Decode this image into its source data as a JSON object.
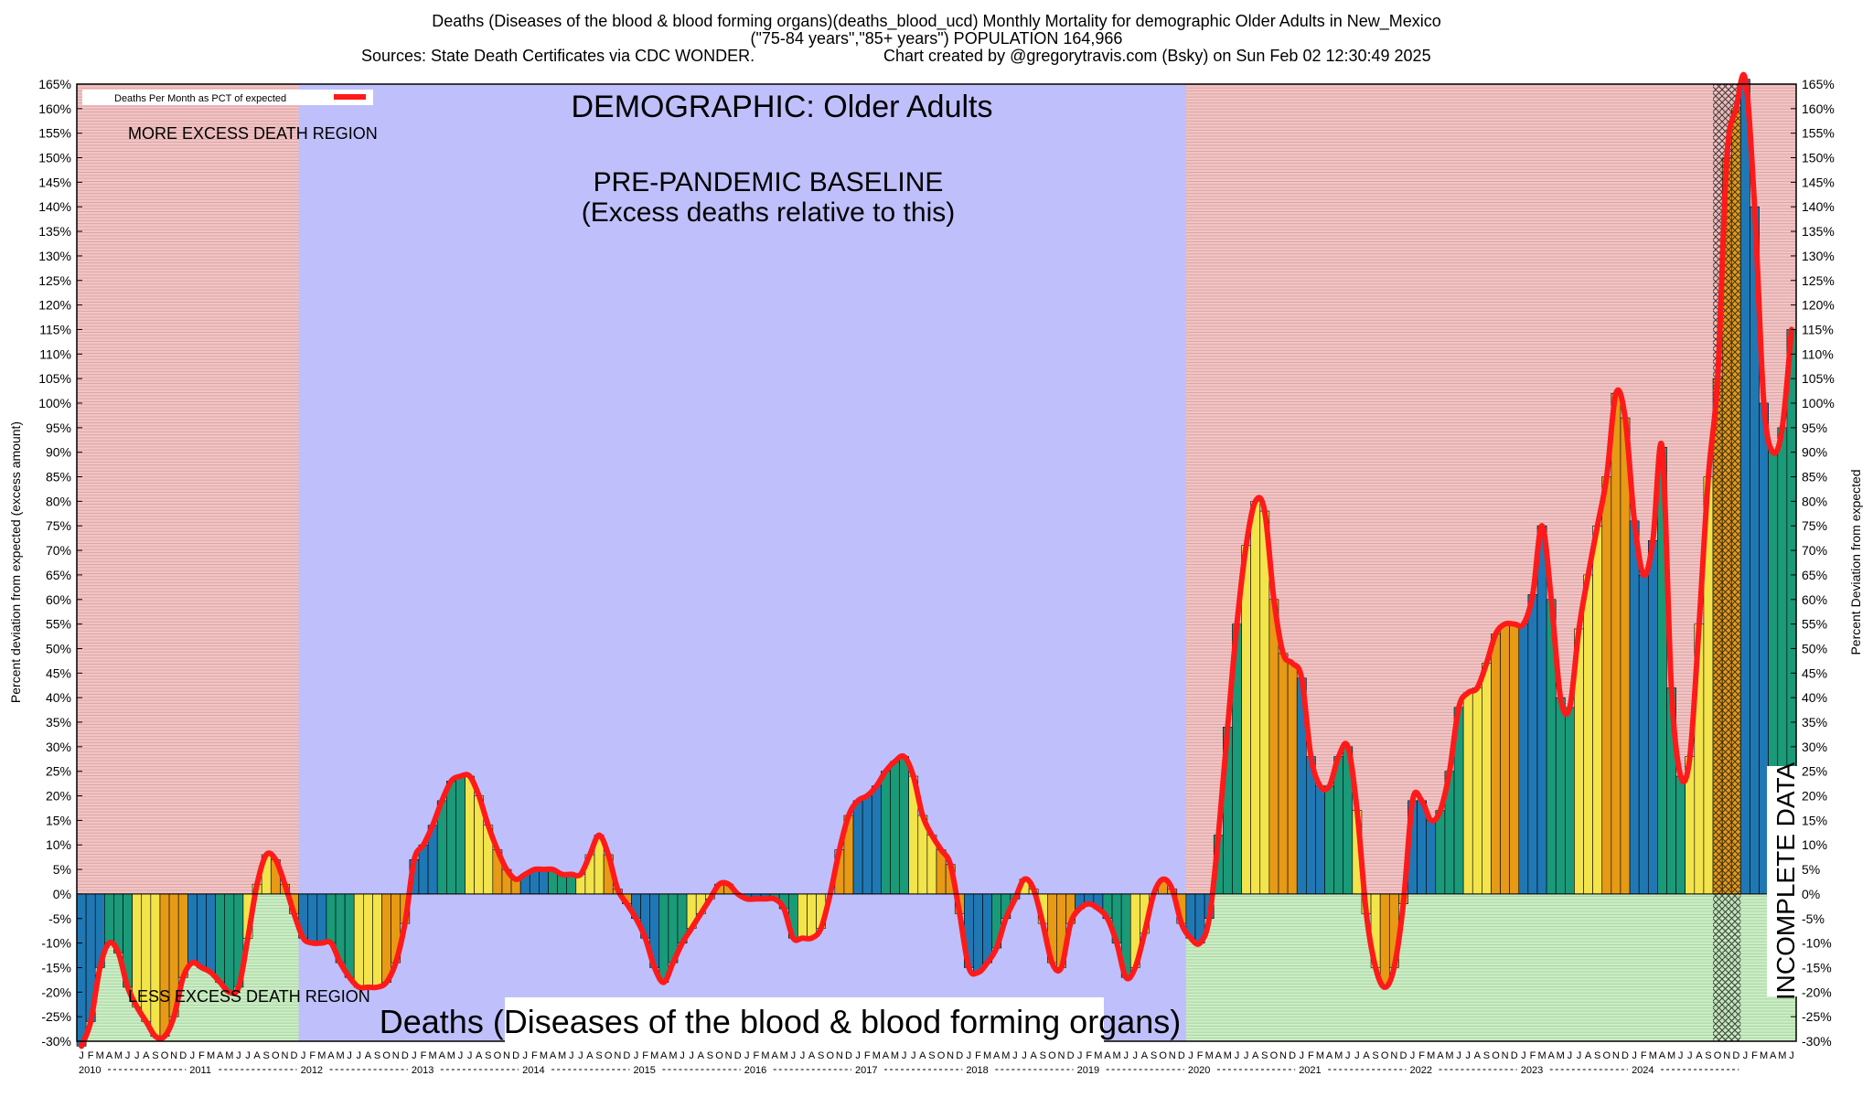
{
  "header": {
    "line1": "Deaths (Diseases of the blood & blood forming organs)(deaths_blood_ucd) Monthly Mortality for demographic Older Adults in New_Mexico",
    "line2": "(\"75-84 years\",\"85+ years\") POPULATION 164,966",
    "line3_left": "Sources: State Death Certificates via CDC WONDER.",
    "line3_right": "Chart created by @gregorytravis.com (Bsky) on Sun Feb 02 12:30:49 2025"
  },
  "colors": {
    "excess_region": "#f4c4c4",
    "less_region": "#cbeec4",
    "baseline_region": "#bfbffb",
    "curve": "#ff1a1a",
    "bar_blue": "#1f78b4",
    "bar_green": "#1a9a78",
    "bar_yellow": "#f3e44b",
    "bar_orange": "#e69a16"
  },
  "chart_data": {
    "type": "bar",
    "title": "DEMOGRAPHIC: Older Adults",
    "subtitle": "Deaths (Diseases of the blood & blood forming organs)",
    "ylabel_left": "Percent deviation from expected (excess amount)",
    "ylabel_right": "Percent Deviation from expected",
    "ylim": [
      -30,
      165
    ],
    "ytick_step": 5,
    "legend_label": "Deaths Per Month as PCT of expected",
    "annotations": {
      "more_excess": "MORE EXCESS DEATH REGION",
      "less_excess": "LESS EXCESS DEATH REGION",
      "baseline_line1": "PRE-PANDEMIC BASELINE",
      "baseline_line2": "(Excess deaths relative to this)",
      "incomplete": "INCOMPLETE DATA"
    },
    "start_year": 2010,
    "years": [
      "2010",
      "2011",
      "2012",
      "2013",
      "2014",
      "2015",
      "2016",
      "2017",
      "2018",
      "2019",
      "2020",
      "2021",
      "2022",
      "2023",
      "2024"
    ],
    "month_letters": [
      "J",
      "F",
      "M",
      "A",
      "M",
      "J",
      "J",
      "A",
      "S",
      "O",
      "N",
      "D"
    ],
    "baseline_months": [
      "2012-01",
      "2019-12"
    ],
    "incomplete_months": [
      "2024-10",
      "2024-12"
    ],
    "values": [
      -31,
      -26,
      -15,
      -10,
      -12,
      -19,
      -23,
      -26,
      -29,
      -29,
      -25,
      -17,
      -14,
      -15,
      -16,
      -18,
      -20,
      -19,
      -9,
      2,
      8,
      7,
      2,
      -4,
      -9,
      -10,
      -10,
      -10,
      -14,
      -17,
      -19,
      -19,
      -19,
      -18,
      -14,
      -6,
      7,
      10,
      14,
      19,
      23,
      24,
      24,
      20,
      14,
      9,
      5,
      3,
      4,
      5,
      5,
      5,
      4,
      4,
      4,
      8,
      12,
      8,
      1,
      -2,
      -5,
      -9,
      -15,
      -18,
      -14,
      -10,
      -7,
      -4,
      -1,
      2,
      2,
      0,
      -1,
      -1,
      -1,
      -1,
      -3,
      -9,
      -9,
      -9,
      -7,
      0,
      9,
      16,
      19,
      20,
      22,
      25,
      27,
      28,
      24,
      16,
      12,
      9,
      6,
      -4,
      -15,
      -16,
      -14,
      -11,
      -5,
      -1,
      3,
      1,
      -6,
      -14,
      -15,
      -6,
      -3,
      -2,
      -3,
      -5,
      -10,
      -17,
      -15,
      -8,
      0,
      3,
      1,
      -6,
      -9,
      -10,
      -5,
      12,
      34,
      55,
      71,
      80,
      78,
      60,
      49,
      47,
      44,
      28,
      22,
      22,
      28,
      30,
      17,
      -4,
      -15,
      -19,
      -15,
      -2,
      19,
      19,
      15,
      17,
      25,
      38,
      41,
      42,
      47,
      53,
      55,
      55,
      55,
      61,
      75,
      60,
      40,
      38,
      54,
      65,
      75,
      85,
      102,
      97,
      76,
      65,
      72,
      91,
      42,
      24,
      28,
      55,
      85,
      105,
      150,
      160,
      166,
      140,
      100,
      90,
      95,
      115
    ]
  }
}
